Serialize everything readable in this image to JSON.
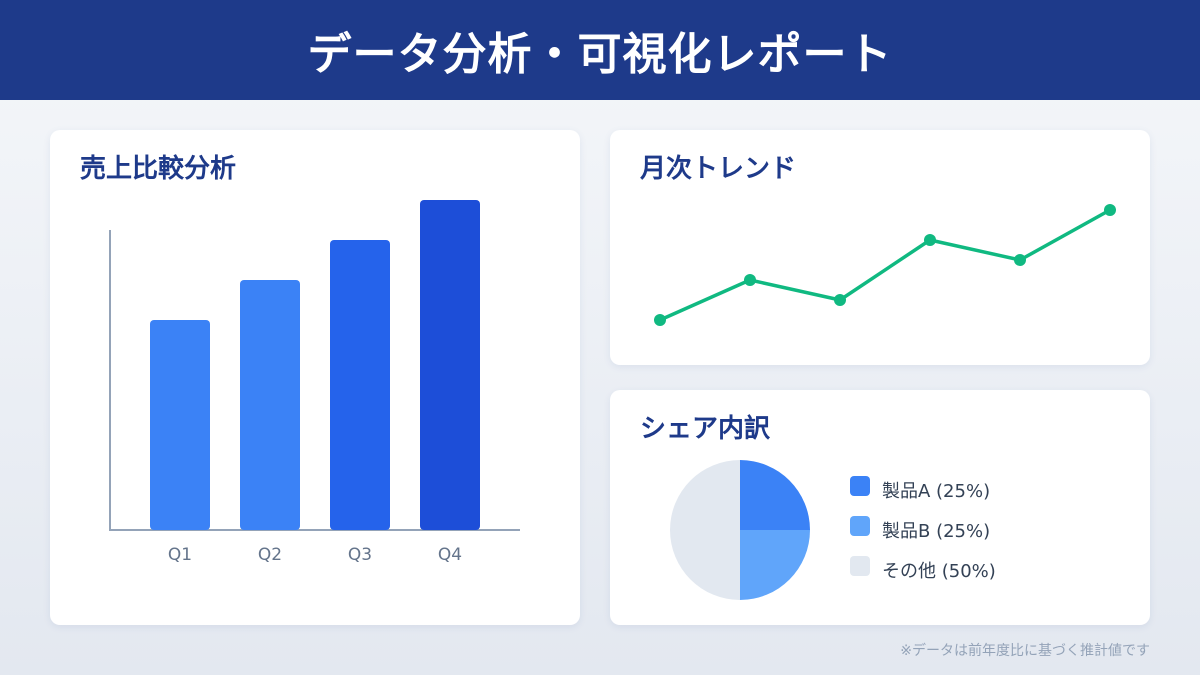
{
  "header": {
    "title": "データ分析・可視化レポート",
    "bg_color": "#1e3a8a"
  },
  "cards": {
    "bar": {
      "title": "売上比較分析"
    },
    "line": {
      "title": "月次トレンド"
    },
    "pie": {
      "title": "シェア内訳"
    }
  },
  "legend": [
    {
      "label": "製品A (25%)",
      "color": "#3b82f6"
    },
    {
      "label": "製品B (25%)",
      "color": "#60a5fa"
    },
    {
      "label": "その他 (50%)",
      "color": "#e2e8f0"
    }
  ],
  "footnote": "※データは前年度比に基づく推計値です",
  "chart_data": [
    {
      "type": "bar",
      "title": "売上比較分析",
      "categories": [
        "Q1",
        "Q2",
        "Q3",
        "Q4"
      ],
      "values": [
        210,
        250,
        290,
        330
      ],
      "colors": [
        "#3b82f6",
        "#3b82f6",
        "#2563eb",
        "#1d4ed8"
      ],
      "xlabel": "",
      "ylabel": "",
      "grid": false,
      "note": "values are relative pixel heights above baseline; no y-axis ticks shown"
    },
    {
      "type": "line",
      "title": "月次トレンド",
      "x": [
        1,
        2,
        3,
        4,
        5,
        6
      ],
      "values": [
        0,
        40,
        20,
        80,
        60,
        110
      ],
      "color": "#10b981",
      "grid": false,
      "note": "relative values; no axes or labels shown"
    },
    {
      "type": "pie",
      "title": "シェア内訳",
      "categories": [
        "製品A",
        "製品B",
        "その他"
      ],
      "values": [
        25,
        25,
        50
      ],
      "colors": [
        "#3b82f6",
        "#60a5fa",
        "#e2e8f0"
      ],
      "legend_position": "right"
    }
  ]
}
